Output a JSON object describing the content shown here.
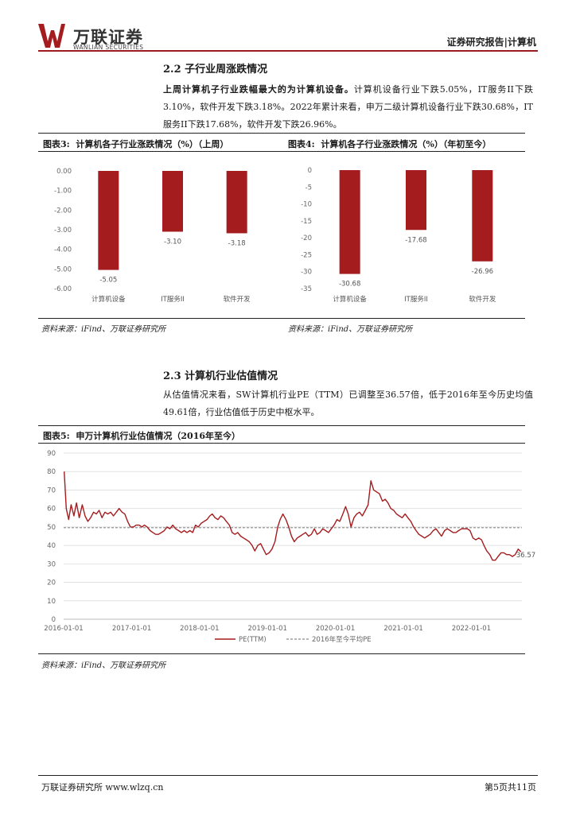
{
  "header": {
    "logo_cn": "万联证券",
    "logo_en": "WANLIAN SECURITIES",
    "report_type": "证券研究报告|计算机"
  },
  "section_2_2": {
    "title": "2.2 子行业周涨跌情况",
    "para_bold": "上周计算机子行业跌幅最大的为计算机设备。",
    "para_rest": "计算机设备行业下跌5.05%，IT服务II下跌3.10%，软件开发下跌3.18%。2022年累计来看，申万二级计算机设备行业下跌30.68%，IT服务II下跌17.68%，软件开发下跌26.96%。"
  },
  "fig3": {
    "label": "图表3:",
    "title": "计算机各子行业涨跌情况（%）（上周）",
    "source": "资料来源：iFind、万联证券研究所"
  },
  "fig4": {
    "label": "图表4:",
    "title": "计算机各子行业涨跌情况（%）（年初至今）",
    "source": "资料来源：iFind、万联证券研究所"
  },
  "section_2_3": {
    "title": "2.3 计算机行业估值情况",
    "para": "从估值情况来看，SW计算机行业PE（TTM）已调整至36.57倍，低于2016年至今历史均值49.61倍，行业估值低于历史中枢水平。"
  },
  "fig5": {
    "label": "图表5:",
    "title": "申万计算机行业估值情况（2016年至今）",
    "source": "资料来源：iFind、万联证券研究所"
  },
  "chart_data": [
    {
      "type": "bar",
      "categories": [
        "计算机设备",
        "IT服务II",
        "软件开发"
      ],
      "values": [
        -5.05,
        -3.1,
        -3.18
      ],
      "value_labels": [
        "-5.05",
        "-3.10",
        "-3.18"
      ],
      "ylim": [
        -6,
        0
      ],
      "yticks": [
        "0.00",
        "-1.00",
        "-2.00",
        "-3.00",
        "-4.00",
        "-5.00",
        "-6.00"
      ],
      "color": "#a51c1f",
      "title": "",
      "xlabel": "",
      "ylabel": ""
    },
    {
      "type": "bar",
      "categories": [
        "计算机设备",
        "IT服务II",
        "软件开发"
      ],
      "values": [
        -30.68,
        -17.68,
        -26.96
      ],
      "value_labels": [
        "-30.68",
        "-17.68",
        "-26.96"
      ],
      "ylim": [
        -35,
        0
      ],
      "yticks": [
        "0",
        "-5",
        "-10",
        "-15",
        "-20",
        "-25",
        "-30",
        "-35"
      ],
      "color": "#a51c1f",
      "title": "",
      "xlabel": "",
      "ylabel": ""
    },
    {
      "type": "line",
      "xlim": [
        "2016-01-01",
        "2022-09-30"
      ],
      "xticks": [
        "2016-01-01",
        "2017-01-01",
        "2018-01-01",
        "2019-01-01",
        "2020-01-01",
        "2021-01-01",
        "2022-01-01"
      ],
      "ylim": [
        0,
        90
      ],
      "yticks": [
        "0",
        "10",
        "20",
        "30",
        "40",
        "50",
        "60",
        "70",
        "80",
        "90"
      ],
      "grid": true,
      "legend": "bottom",
      "end_label": "36.57",
      "series": [
        {
          "name": "PE(TTM)",
          "color": "#a51c1f",
          "style": "solid",
          "points": [
            [
              "2016-01-04",
              80
            ],
            [
              "2016-01-15",
              60
            ],
            [
              "2016-01-28",
              54
            ],
            [
              "2016-02-10",
              62
            ],
            [
              "2016-02-25",
              56
            ],
            [
              "2016-03-10",
              63
            ],
            [
              "2016-03-25",
              55
            ],
            [
              "2016-04-10",
              62
            ],
            [
              "2016-04-25",
              56
            ],
            [
              "2016-05-10",
              53
            ],
            [
              "2016-05-25",
              55
            ],
            [
              "2016-06-10",
              58
            ],
            [
              "2016-06-25",
              57
            ],
            [
              "2016-07-10",
              59
            ],
            [
              "2016-07-25",
              55
            ],
            [
              "2016-08-10",
              58
            ],
            [
              "2016-08-25",
              57
            ],
            [
              "2016-09-10",
              58
            ],
            [
              "2016-09-25",
              56
            ],
            [
              "2016-10-10",
              58
            ],
            [
              "2016-10-25",
              60
            ],
            [
              "2016-11-10",
              58
            ],
            [
              "2016-11-25",
              57
            ],
            [
              "2016-12-10",
              53
            ],
            [
              "2016-12-25",
              50
            ],
            [
              "2017-01-10",
              50
            ],
            [
              "2017-01-25",
              51
            ],
            [
              "2017-02-10",
              51
            ],
            [
              "2017-02-25",
              50
            ],
            [
              "2017-03-10",
              51
            ],
            [
              "2017-03-25",
              50
            ],
            [
              "2017-04-10",
              48
            ],
            [
              "2017-04-25",
              47
            ],
            [
              "2017-05-10",
              46
            ],
            [
              "2017-05-25",
              46
            ],
            [
              "2017-06-10",
              47
            ],
            [
              "2017-06-25",
              48
            ],
            [
              "2017-07-10",
              50
            ],
            [
              "2017-07-25",
              49
            ],
            [
              "2017-08-10",
              51
            ],
            [
              "2017-08-25",
              49
            ],
            [
              "2017-09-10",
              48
            ],
            [
              "2017-09-25",
              47
            ],
            [
              "2017-10-10",
              48
            ],
            [
              "2017-10-25",
              47
            ],
            [
              "2017-11-10",
              48
            ],
            [
              "2017-11-25",
              47
            ],
            [
              "2017-12-10",
              51
            ],
            [
              "2017-12-25",
              50
            ],
            [
              "2018-01-10",
              52
            ],
            [
              "2018-01-25",
              53
            ],
            [
              "2018-02-10",
              54
            ],
            [
              "2018-02-25",
              56
            ],
            [
              "2018-03-10",
              57
            ],
            [
              "2018-03-25",
              55
            ],
            [
              "2018-04-10",
              54
            ],
            [
              "2018-04-25",
              56
            ],
            [
              "2018-05-10",
              55
            ],
            [
              "2018-05-25",
              53
            ],
            [
              "2018-06-10",
              51
            ],
            [
              "2018-06-25",
              47
            ],
            [
              "2018-07-10",
              46
            ],
            [
              "2018-07-25",
              47
            ],
            [
              "2018-08-10",
              45
            ],
            [
              "2018-08-25",
              44
            ],
            [
              "2018-09-10",
              43
            ],
            [
              "2018-09-25",
              42
            ],
            [
              "2018-10-10",
              40
            ],
            [
              "2018-10-25",
              37
            ],
            [
              "2018-11-10",
              40
            ],
            [
              "2018-11-25",
              41
            ],
            [
              "2018-12-10",
              38
            ],
            [
              "2018-12-25",
              35
            ],
            [
              "2019-01-10",
              36
            ],
            [
              "2019-01-25",
              38
            ],
            [
              "2019-02-10",
              42
            ],
            [
              "2019-02-25",
              50
            ],
            [
              "2019-03-10",
              54
            ],
            [
              "2019-03-25",
              57
            ],
            [
              "2019-04-10",
              54
            ],
            [
              "2019-04-25",
              50
            ],
            [
              "2019-05-10",
              45
            ],
            [
              "2019-05-25",
              42
            ],
            [
              "2019-06-10",
              44
            ],
            [
              "2019-06-25",
              45
            ],
            [
              "2019-07-10",
              46
            ],
            [
              "2019-07-25",
              47
            ],
            [
              "2019-08-10",
              45
            ],
            [
              "2019-08-25",
              46
            ],
            [
              "2019-09-10",
              49
            ],
            [
              "2019-09-25",
              46
            ],
            [
              "2019-10-10",
              47
            ],
            [
              "2019-10-25",
              49
            ],
            [
              "2019-11-10",
              48
            ],
            [
              "2019-11-25",
              47
            ],
            [
              "2019-12-10",
              49
            ],
            [
              "2019-12-25",
              51
            ],
            [
              "2020-01-10",
              54
            ],
            [
              "2020-01-25",
              53
            ],
            [
              "2020-02-10",
              57
            ],
            [
              "2020-02-25",
              61
            ],
            [
              "2020-03-10",
              57
            ],
            [
              "2020-03-25",
              50
            ],
            [
              "2020-04-10",
              55
            ],
            [
              "2020-04-25",
              57
            ],
            [
              "2020-05-10",
              58
            ],
            [
              "2020-05-25",
              56
            ],
            [
              "2020-06-10",
              59
            ],
            [
              "2020-06-25",
              62
            ],
            [
              "2020-07-10",
              75
            ],
            [
              "2020-07-25",
              70
            ],
            [
              "2020-08-10",
              69
            ],
            [
              "2020-08-25",
              68
            ],
            [
              "2020-09-10",
              64
            ],
            [
              "2020-09-25",
              65
            ],
            [
              "2020-10-10",
              63
            ],
            [
              "2020-10-25",
              60
            ],
            [
              "2020-11-10",
              59
            ],
            [
              "2020-11-25",
              57
            ],
            [
              "2020-12-10",
              56
            ],
            [
              "2020-12-25",
              55
            ],
            [
              "2021-01-10",
              57
            ],
            [
              "2021-01-25",
              55
            ],
            [
              "2021-02-10",
              53
            ],
            [
              "2021-02-25",
              50
            ],
            [
              "2021-03-10",
              48
            ],
            [
              "2021-03-25",
              46
            ],
            [
              "2021-04-10",
              45
            ],
            [
              "2021-04-25",
              44
            ],
            [
              "2021-05-10",
              45
            ],
            [
              "2021-05-25",
              46
            ],
            [
              "2021-06-10",
              48
            ],
            [
              "2021-06-25",
              49
            ],
            [
              "2021-07-10",
              47
            ],
            [
              "2021-07-25",
              45
            ],
            [
              "2021-08-10",
              48
            ],
            [
              "2021-08-25",
              49
            ],
            [
              "2021-09-10",
              48
            ],
            [
              "2021-09-25",
              47
            ],
            [
              "2021-10-10",
              47
            ],
            [
              "2021-10-25",
              48
            ],
            [
              "2021-11-10",
              49
            ],
            [
              "2021-11-25",
              49
            ],
            [
              "2021-12-10",
              49
            ],
            [
              "2021-12-25",
              48
            ],
            [
              "2022-01-10",
              44
            ],
            [
              "2022-01-25",
              43
            ],
            [
              "2022-02-10",
              44
            ],
            [
              "2022-02-25",
              43
            ],
            [
              "2022-03-10",
              40
            ],
            [
              "2022-03-25",
              37
            ],
            [
              "2022-04-10",
              35
            ],
            [
              "2022-04-25",
              32
            ],
            [
              "2022-05-10",
              32
            ],
            [
              "2022-05-25",
              34
            ],
            [
              "2022-06-10",
              36
            ],
            [
              "2022-06-25",
              36
            ],
            [
              "2022-07-10",
              35
            ],
            [
              "2022-07-25",
              35
            ],
            [
              "2022-08-10",
              34
            ],
            [
              "2022-08-25",
              35
            ],
            [
              "2022-09-10",
              38
            ],
            [
              "2022-09-25",
              36.57
            ]
          ]
        },
        {
          "name": "2016年至今平均PE",
          "color": "#8a8a8a",
          "style": "dashed",
          "value": 49.61
        }
      ],
      "title": "",
      "xlabel": "",
      "ylabel": ""
    }
  ],
  "footer": {
    "left": "万联证券研究所 www.wlzq.cn",
    "right": "第5页共11页"
  }
}
